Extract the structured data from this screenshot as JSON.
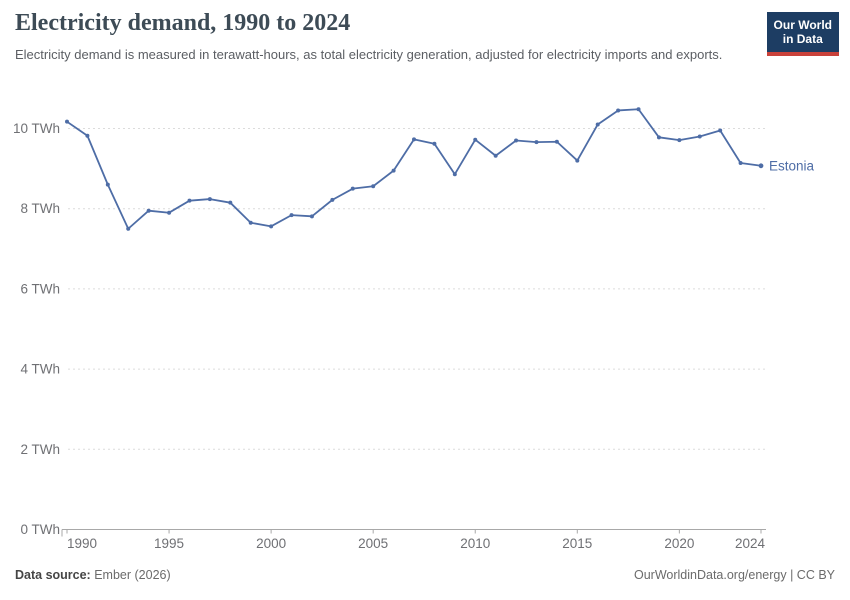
{
  "header": {
    "title": "Electricity demand, 1990 to 2024",
    "subtitle": "Electricity demand is measured in terawatt-hours, as total electricity generation, adjusted for electricity imports and exports.",
    "logo": {
      "line1": "Our World",
      "line2": "in Data"
    }
  },
  "chart_data": {
    "type": "line",
    "title": "Electricity demand, 1990 to 2024",
    "xlabel": "",
    "ylabel": "TWh",
    "ylim": [
      0,
      11
    ],
    "grid": "horizontal-dashed",
    "legend_position": "end-of-line-label",
    "yticks": [
      0,
      2,
      4,
      6,
      8,
      10
    ],
    "ytick_format": "{v} TWh",
    "xticks": [
      1990,
      1995,
      2000,
      2005,
      2010,
      2015,
      2020,
      2024
    ],
    "series": [
      {
        "name": "Estonia",
        "color": "#4e6da6",
        "x": [
          1990,
          1991,
          1992,
          1993,
          1994,
          1995,
          1996,
          1997,
          1998,
          1999,
          2000,
          2001,
          2002,
          2003,
          2004,
          2005,
          2006,
          2007,
          2008,
          2009,
          2010,
          2011,
          2012,
          2013,
          2014,
          2015,
          2016,
          2017,
          2018,
          2019,
          2020,
          2021,
          2022,
          2023,
          2024
        ],
        "values": [
          10.17,
          9.82,
          8.6,
          7.5,
          7.95,
          7.9,
          8.2,
          8.24,
          8.15,
          7.65,
          7.56,
          7.84,
          7.81,
          8.22,
          8.5,
          8.56,
          8.95,
          9.73,
          9.62,
          8.86,
          9.72,
          9.32,
          9.7,
          9.66,
          9.67,
          9.2,
          10.1,
          10.45,
          10.48,
          9.78,
          9.71,
          9.8,
          9.95,
          9.14,
          9.07
        ]
      }
    ]
  },
  "footer": {
    "datasource_label": "Data source:",
    "datasource_value": " Ember (2026)",
    "right_text": "OurWorldinData.org/energy | CC BY"
  },
  "colors": {
    "line": "#4e6da6",
    "gridline": "#dcdcdc",
    "axis": "#a8a8a8",
    "axis_text": "#6f7074",
    "title": "#3d4b56",
    "logo_bg": "#1d3d63",
    "logo_red": "#c9413a"
  }
}
